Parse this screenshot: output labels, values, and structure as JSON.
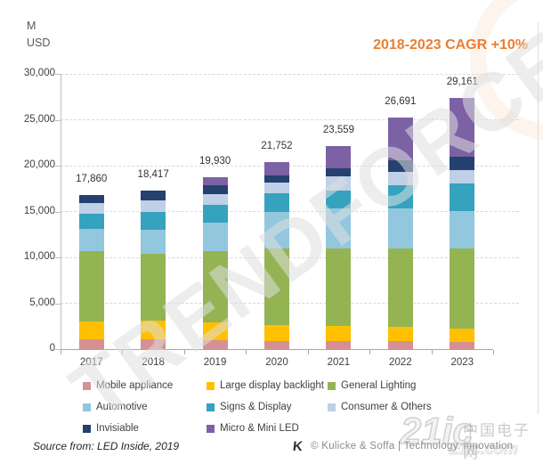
{
  "header": {
    "unit_top": "M",
    "unit_bottom": "USD",
    "cagr_title": "2018-2023 CAGR +10%",
    "accent_color": "#ED7D31"
  },
  "chart_data": {
    "type": "bar",
    "stacked": true,
    "title": "2018-2023 CAGR +10%",
    "value_unit": "M USD",
    "categories": [
      "2017",
      "2018",
      "2019",
      "2020",
      "2021",
      "2022",
      "2023"
    ],
    "totals_labels": [
      "17,860",
      "18,417",
      "19,930",
      "21,752",
      "23,559",
      "26,691",
      "29,161"
    ],
    "totals_values": [
      17860,
      18417,
      19930,
      21752,
      23559,
      26691,
      29161
    ],
    "series": [
      {
        "name": "Mobile appliance",
        "color": "#D69093",
        "values": [
          1050,
          1050,
          950,
          900,
          900,
          900,
          800
        ]
      },
      {
        "name": "Large display backlight",
        "color": "#FFC000",
        "values": [
          1950,
          2050,
          2000,
          1700,
          1600,
          1500,
          1450
        ]
      },
      {
        "name": "General Lighting",
        "color": "#94B454",
        "values": [
          7650,
          7300,
          7750,
          8400,
          8500,
          8550,
          8700
        ]
      },
      {
        "name": "Automotive",
        "color": "#92C7DE",
        "values": [
          2450,
          2650,
          3100,
          3950,
          4300,
          4350,
          4100
        ]
      },
      {
        "name": "Signs & Display",
        "color": "#35A2BE",
        "values": [
          1700,
          1950,
          1950,
          2050,
          2000,
          2600,
          3050
        ]
      },
      {
        "name": "Consumer & Others",
        "color": "#BFD0E7",
        "values": [
          1150,
          1250,
          1150,
          1150,
          1550,
          1450,
          1400
        ]
      },
      {
        "name": "Invisiable",
        "color": "#24416F",
        "values": [
          800,
          1000,
          1000,
          800,
          900,
          1200,
          1450
        ]
      },
      {
        "name": "Micro & Mini LED",
        "color": "#7C61A5",
        "values": [
          0,
          0,
          800,
          1450,
          2400,
          4650,
          6400
        ]
      }
    ],
    "y_axis": {
      "tick_labels": [
        "30,000",
        "25,000",
        "20,000",
        "15,000",
        "10,000",
        "5,000",
        "0"
      ],
      "tick_values": [
        30000,
        25000,
        20000,
        15000,
        10000,
        5000,
        0
      ],
      "min": 0,
      "max": 30000,
      "gridlines": "dashed"
    },
    "legend_position": "bottom"
  },
  "footer": {
    "source": "Source from: LED Inside, 2019",
    "logo_glyph": "K",
    "credit": "© Kulicke & Soffa | Technology. innovation"
  },
  "watermarks": {
    "diagonal_text": "TRENDFORCE",
    "site": "21ic",
    "site_cn": "中国电子网",
    "site_url": "21ic.com"
  }
}
